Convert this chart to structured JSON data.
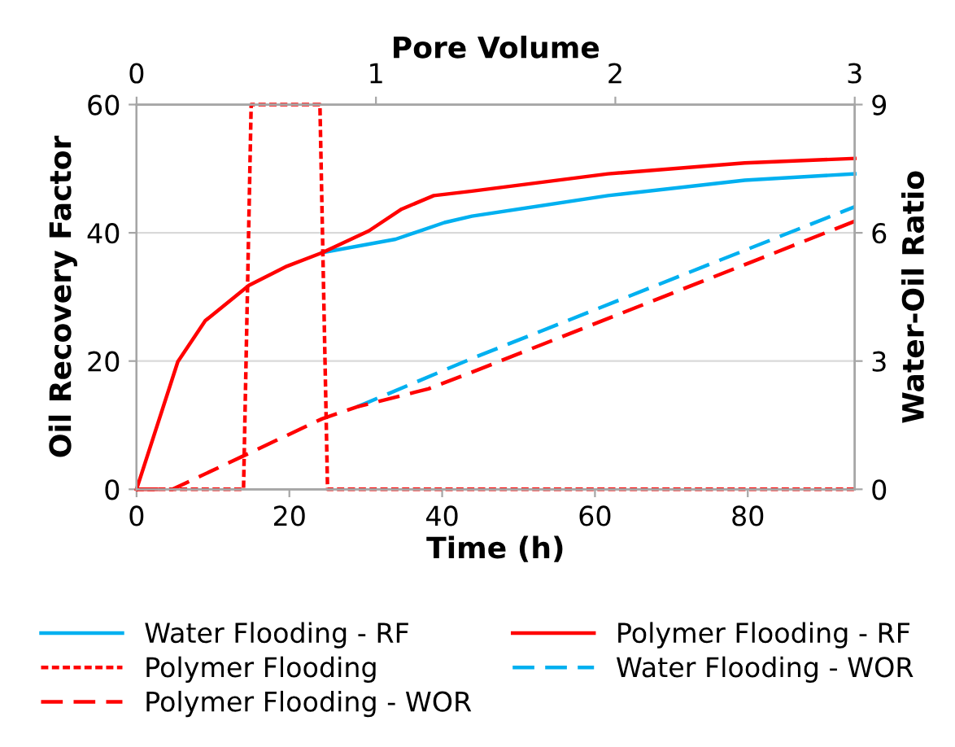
{
  "chart_data": {
    "type": "line",
    "xlabel": "Time (h)",
    "ylabel": "Oil Recovery Factor",
    "y2label": "Water-Oil Ratio",
    "x2label": "Pore Volume",
    "xlim": [
      0,
      94
    ],
    "xticks": [
      0,
      20,
      40,
      60,
      80
    ],
    "x2lim": [
      0,
      3
    ],
    "x2ticks": [
      0,
      1,
      2,
      3
    ],
    "ylim": [
      0,
      60
    ],
    "yticks": [
      0,
      20,
      40,
      60
    ],
    "y2lim": [
      0,
      9
    ],
    "y2ticks": [
      0,
      3,
      6,
      9
    ],
    "grid": "y",
    "legend": "bottom",
    "marker": "none",
    "series": [
      {
        "name": "Water Flooding - RF",
        "color": "#00b0f0",
        "line_style": "solid",
        "x": [
          24.3,
          33.9,
          40.3,
          43.9,
          61.7,
          79.6,
          94
        ],
        "values": [
          36.9,
          39.0,
          41.6,
          42.6,
          45.8,
          48.2,
          49.2
        ]
      },
      {
        "name": "Polymer Flooding - RF",
        "color": "#ff0000",
        "line_style": "solid",
        "x": [
          0,
          5.4,
          9.0,
          14.7,
          19.7,
          24.3,
          30.4,
          34.7,
          38.9,
          43.9,
          61.7,
          79.6,
          94
        ],
        "values": [
          0,
          19.9,
          26.3,
          31.8,
          34.8,
          36.9,
          40.3,
          43.7,
          45.8,
          46.5,
          49.2,
          50.9,
          51.6
        ]
      },
      {
        "name": "Polymer Flooding",
        "color": "#ff0000",
        "line_style": "dotted",
        "x": [
          0,
          14,
          15,
          24,
          25,
          94
        ],
        "values": [
          0,
          0,
          60,
          60,
          0,
          0
        ]
      },
      {
        "name": "Water Flooding - WOR",
        "color": "#00b0f0",
        "line_style": "dashed",
        "axis": "y2",
        "x": [
          28.9,
          43.9,
          94
        ],
        "values": [
          1.93,
          3.06,
          6.61
        ]
      },
      {
        "name": "Polymer Flooding - WOR",
        "color": "#ff0000",
        "line_style": "dashed",
        "axis": "y2",
        "x": [
          0,
          4.7,
          24.3,
          28.9,
          38.2,
          43.9,
          94
        ],
        "values": [
          0,
          0,
          1.65,
          1.93,
          2.35,
          2.74,
          6.27
        ]
      }
    ]
  }
}
